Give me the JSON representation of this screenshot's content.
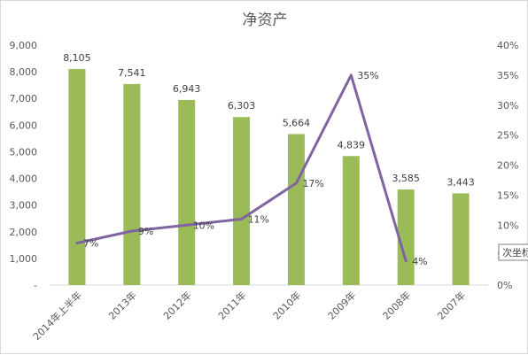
{
  "chart_data": {
    "type": "bar",
    "title": "净资产",
    "categories": [
      "2014年上半年",
      "2013年",
      "2012年",
      "2011年",
      "2010年",
      "2009年",
      "2008年",
      "2007年"
    ],
    "series": [
      {
        "type": "bar",
        "axis": "left",
        "color": "#9bbb59",
        "values": [
          8105,
          7541,
          6943,
          6303,
          5664,
          4839,
          3585,
          3443
        ],
        "labels": [
          "8,105",
          "7,541",
          "6,943",
          "6,303",
          "5,664",
          "4,839",
          "3,585",
          "3,443"
        ]
      },
      {
        "type": "line",
        "axis": "right",
        "color": "#8064a2",
        "values": [
          7,
          9,
          10,
          11,
          17,
          35,
          4,
          null
        ],
        "labels": [
          "7%",
          "9%",
          "10%",
          "11%",
          "17%",
          "35%",
          "4%",
          ""
        ]
      }
    ],
    "y_left": {
      "range": [
        0,
        9000
      ],
      "ticks": [
        0,
        1000,
        2000,
        3000,
        4000,
        5000,
        6000,
        7000,
        8000,
        9000
      ],
      "tick_labels": [
        "-",
        "1,000",
        "2,000",
        "3,000",
        "4,000",
        "5,000",
        "6,000",
        "7,000",
        "8,000",
        "9,000"
      ]
    },
    "y_right": {
      "range": [
        0,
        40
      ],
      "ticks": [
        0,
        5,
        10,
        15,
        20,
        25,
        30,
        35,
        40
      ],
      "tick_labels": [
        "0%",
        "5%",
        "10%",
        "15%",
        "20%",
        "25%",
        "30%",
        "35%",
        "40%"
      ]
    },
    "grid": false,
    "legend": "none"
  },
  "tooltip": {
    "text": "次坐标"
  }
}
